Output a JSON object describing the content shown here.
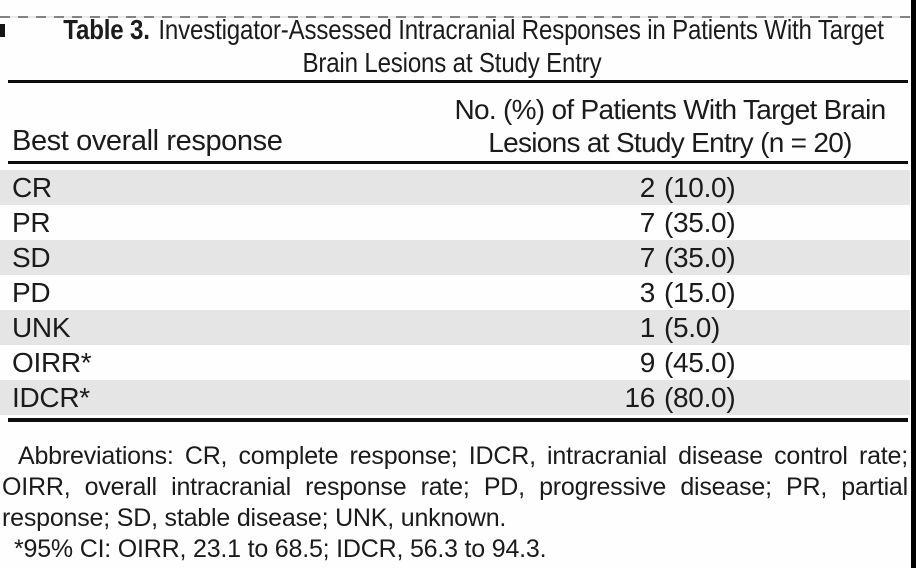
{
  "title": {
    "label": "Table 3.",
    "line1": "Investigator-Assessed Intracranial Responses in Patients With Target",
    "line2": "Brain Lesions at Study Entry"
  },
  "header": {
    "col1": "Best overall response",
    "col2_line1": "No. (%) of Patients With Target Brain",
    "col2_line2": "Lesions at Study Entry (n = 20)"
  },
  "rows": [
    {
      "label": "CR",
      "count": "2",
      "pct": "(10.0)"
    },
    {
      "label": "PR",
      "count": "7",
      "pct": "(35.0)"
    },
    {
      "label": "SD",
      "count": "7",
      "pct": "(35.0)"
    },
    {
      "label": "PD",
      "count": "3",
      "pct": "(15.0)"
    },
    {
      "label": "UNK",
      "count": "1",
      "pct": "(5.0)"
    },
    {
      "label": "OIRR*",
      "count": "9",
      "pct": "(45.0)"
    },
    {
      "label": "IDCR*",
      "count": "16",
      "pct": "(80.0)"
    }
  ],
  "footnotes": {
    "line1": "Abbreviations: CR, complete response; IDCR, intracranial disease control rate;",
    "line2": "OIRR, overall intracranial response rate; PD, progressive disease; PR, partial",
    "line3": "response; SD, stable disease; UNK, unknown.",
    "line4": "*95% CI: OIRR, 23.1 to 68.5; IDCR, 56.3 to 94.3."
  },
  "colors": {
    "shaded_row": "#e5e5e5",
    "text": "#1b1b1b",
    "rule": "#0d0d0d",
    "page_edge": "#000000"
  }
}
